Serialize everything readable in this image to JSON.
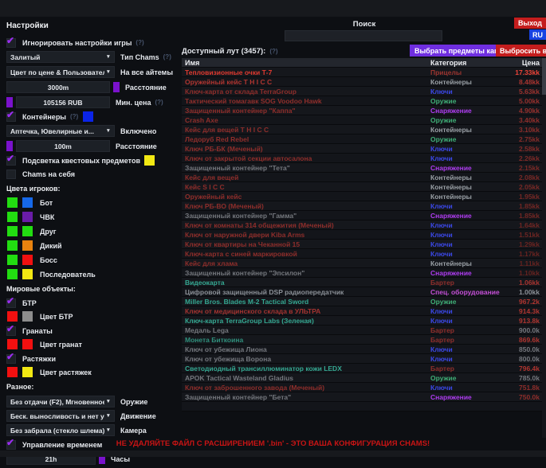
{
  "window": {
    "search_label": "Поиск",
    "exit_button": "Выход",
    "lang_button": "RU",
    "warning": "НЕ УДАЛЯЙТЕ ФАЙЛ С РАСШИРЕНИЕМ '.bin'  - ЭТО ВАША КОНФИГУРАЦИЯ CHAMS!"
  },
  "settings": {
    "title": "Настройки",
    "ignore_game": {
      "label": "Игнорировать настройки игры",
      "hint": "(?)",
      "checked": true
    },
    "chams_type": {
      "value": "Залитый",
      "label": "Тип Chams",
      "hint": "(?)"
    },
    "color_mode": {
      "value": "Цвет по цене & Пользователь",
      "label": "На все айтемы"
    },
    "distance_all": {
      "value": "3000m",
      "label": "Расстояние",
      "swatch": "#7a12cc"
    },
    "min_price": {
      "value": "105156 RUB",
      "label": "Мин. цена",
      "hint": "(?)",
      "swatch": "#7a12cc"
    },
    "containers": {
      "label": "Контейнеры",
      "hint": "(?)",
      "swatch": "#0b24e8",
      "checked": true
    },
    "containers_filter": {
      "value": "Аптечка, Ювелирные и...",
      "label": "Включено"
    },
    "containers_distance": {
      "value": "100m",
      "label": "Расстояние",
      "swatch": "#7a12cc"
    },
    "quest_highlight": {
      "label": "Подсветка квестовых предметов",
      "swatch": "#f2e813",
      "checked": true
    },
    "self_chams": {
      "label": "Chams на себя",
      "checked": false
    },
    "player_colors_title": "Цвета игроков:",
    "player_colors": [
      {
        "label": "Бот",
        "c1": "#22dd11",
        "c2": "#1668e8"
      },
      {
        "label": "ЧВК",
        "c1": "#22dd11",
        "c2": "#6a1ca8"
      },
      {
        "label": "Друг",
        "c1": "#22dd11",
        "c2": "#22dd11"
      },
      {
        "label": "Дикий",
        "c1": "#22dd11",
        "c2": "#e8820f"
      },
      {
        "label": "Босс",
        "c1": "#22dd11",
        "c2": "#f21010"
      },
      {
        "label": "Последователь",
        "c1": "#22dd11",
        "c2": "#f2e813"
      }
    ],
    "world_title": "Мировые объекты:",
    "btr": {
      "label": "БТР",
      "checked": true
    },
    "btr_color": {
      "label": "Цвет БТР",
      "c1": "#f21010",
      "c2": "#8d8d8d"
    },
    "grenades": {
      "label": "Гранаты",
      "checked": true
    },
    "grenade_color": {
      "label": "Цвет гранат",
      "c1": "#f21010",
      "c2": "#f21010"
    },
    "tripwires": {
      "label": "Растяжки",
      "checked": true
    },
    "tripwire_color": {
      "label": "Цвет растяжек",
      "c1": "#f21010",
      "c2": "#f2e813"
    },
    "misc_title": "Разное:",
    "weapon": {
      "value": "Без отдачи (F2), Мгновенное п",
      "label": "Оружие"
    },
    "movement": {
      "value": "Беск. выносливость и нет уста",
      "label": "Движение"
    },
    "camera": {
      "value": "Без забрала (стекло шлема)",
      "label": "Камера"
    },
    "time_control": {
      "label": "Управление временем",
      "checked": true
    },
    "hours": {
      "value": "21h",
      "label": "Часы",
      "swatch": "#7a12cc"
    }
  },
  "loot": {
    "title": "Доступный лут (3457):",
    "hint": "(?)",
    "kappa_button": "Выбрать предметы каппа",
    "discard_button": "Выбросить все",
    "columns": {
      "name": "Имя",
      "category": "Категория",
      "price": "Цена"
    },
    "category_colors": {
      "Прицелы": "#9c3530",
      "Контейнеры": "#9aa0a6",
      "Ключи": "#3b48e8",
      "Оружие": "#3fae76",
      "Снаряжение": "#ae3cf0",
      "Бартер": "#8f2f2c",
      "Спец. оборудование": "#c44fd6"
    },
    "rows": [
      {
        "name": "Тепловизионные очки Т-7",
        "name_color": "#e03a30",
        "cat": "Прицелы",
        "price": "17.33kk",
        "price_color": "#f04438"
      },
      {
        "name": "Оружейный кейс T H I C C",
        "name_color": "#b03530",
        "cat": "Контейнеры",
        "price": "8.48kk",
        "price_color": "#a83430"
      },
      {
        "name": "Ключ-карта от склада TerraGroup",
        "name_color": "#8f2e2b",
        "cat": "Ключи",
        "price": "5.63kk",
        "price_color": "#9c322e"
      },
      {
        "name": "Тактический томагавк SOG Voodoo Hawk",
        "name_color": "#8f2e2b",
        "cat": "Оружие",
        "price": "5.00kk",
        "price_color": "#96302d"
      },
      {
        "name": "Защищенный контейнер \"Каппа\"",
        "name_color": "#8f2e2b",
        "cat": "Снаряжение",
        "price": "4.90kk",
        "price_color": "#96302d"
      },
      {
        "name": "Crash Axe",
        "name_color": "#8f2e2b",
        "cat": "Оружие",
        "price": "3.40kk",
        "price_color": "#8f2e2b"
      },
      {
        "name": "Кейс для вещей T H I C C",
        "name_color": "#8f2e2b",
        "cat": "Контейнеры",
        "price": "3.10kk",
        "price_color": "#8a2d2a"
      },
      {
        "name": "Ледоруб Red Rebel",
        "name_color": "#8f2e2b",
        "cat": "Оружие",
        "price": "2.75kk",
        "price_color": "#852c29"
      },
      {
        "name": "Ключ РБ-БК (Меченый)",
        "name_color": "#8f2e2b",
        "cat": "Ключи",
        "price": "2.58kk",
        "price_color": "#822b28"
      },
      {
        "name": "Ключ от закрытой секции автосалона",
        "name_color": "#8f2e2b",
        "cat": "Ключи",
        "price": "2.26kk",
        "price_color": "#7d2a27"
      },
      {
        "name": "Защищенный контейнер \"Тета\"",
        "name_color": "#74777d",
        "cat": "Снаряжение",
        "price": "2.15kk",
        "price_color": "#7a2926"
      },
      {
        "name": "Кейс для вещей",
        "name_color": "#8f2e2b",
        "cat": "Контейнеры",
        "price": "2.08kk",
        "price_color": "#782926"
      },
      {
        "name": "Кейс S I C C",
        "name_color": "#8f2e2b",
        "cat": "Контейнеры",
        "price": "2.05kk",
        "price_color": "#782926"
      },
      {
        "name": "Оружейный кейс",
        "name_color": "#8f2e2b",
        "cat": "Контейнеры",
        "price": "1.95kk",
        "price_color": "#752825"
      },
      {
        "name": "Ключ РБ-ВО (Меченый)",
        "name_color": "#8f2e2b",
        "cat": "Ключи",
        "price": "1.85kk",
        "price_color": "#732724"
      },
      {
        "name": "Защищенный контейнер \"Гамма\"",
        "name_color": "#74777d",
        "cat": "Снаряжение",
        "price": "1.85kk",
        "price_color": "#732724"
      },
      {
        "name": "Ключ от комнаты 314 общежития (Меченый)",
        "name_color": "#8f2e2b",
        "cat": "Ключи",
        "price": "1.64kk",
        "price_color": "#702623"
      },
      {
        "name": "Ключ от наружной двери Kiba Arms",
        "name_color": "#8f2e2b",
        "cat": "Ключи",
        "price": "1.51kk",
        "price_color": "#6d2522"
      },
      {
        "name": "Ключ от квартиры на Чеканной 15",
        "name_color": "#8f2e2b",
        "cat": "Ключи",
        "price": "1.29kk",
        "price_color": "#6a2421"
      },
      {
        "name": "Ключ-карта с синей маркировкой",
        "name_color": "#8f2e2b",
        "cat": "Ключи",
        "price": "1.17kk",
        "price_color": "#682320"
      },
      {
        "name": "Кейс для хлама",
        "name_color": "#8f2e2b",
        "cat": "Контейнеры",
        "price": "1.11kk",
        "price_color": "#662320"
      },
      {
        "name": "Защищенный контейнер \"Эпсилон\"",
        "name_color": "#74777d",
        "cat": "Снаряжение",
        "price": "1.10kk",
        "price_color": "#662320"
      },
      {
        "name": "Видеокарта",
        "name_color": "#35a892",
        "cat": "Бартер",
        "price": "1.06kk",
        "price_color": "#a83430"
      },
      {
        "name": "Цифровой защищенный DSP радиопередатчик",
        "name_color": "#8b9097",
        "cat": "Спец. оборудование",
        "price": "1.00kk",
        "price_color": "#8b9097"
      },
      {
        "name": "Miller Bros. Blades M-2 Tactical Sword",
        "name_color": "#35a892",
        "cat": "Оружие",
        "price": "967.2k",
        "price_color": "#b03530"
      },
      {
        "name": "Ключ от медицинского склада в УЛЬТРА",
        "name_color": "#a33330",
        "cat": "Ключи",
        "price": "914.3k",
        "price_color": "#b03530"
      },
      {
        "name": "Ключ-карта TerraGroup Labs (Зеленая)",
        "name_color": "#35a892",
        "cat": "Ключи",
        "price": "913.8k",
        "price_color": "#b03530"
      },
      {
        "name": "Медаль Lega",
        "name_color": "#74777d",
        "cat": "Бартер",
        "price": "900.0k",
        "price_color": "#74777d"
      },
      {
        "name": "Монета Биткоина",
        "name_color": "#2f8f7c",
        "cat": "Бартер",
        "price": "869.6k",
        "price_color": "#b03530"
      },
      {
        "name": "Ключ от убежища Лиона",
        "name_color": "#74777d",
        "cat": "Ключи",
        "price": "850.0k",
        "price_color": "#74777d"
      },
      {
        "name": "Ключ от убежища Ворона",
        "name_color": "#74777d",
        "cat": "Ключи",
        "price": "800.0k",
        "price_color": "#74777d"
      },
      {
        "name": "Светодиодный трансиллюминатор кожи LEDX",
        "name_color": "#35a892",
        "cat": "Бартер",
        "price": "796.4k",
        "price_color": "#b03530"
      },
      {
        "name": "APOK Tactical Wasteland Gladius",
        "name_color": "#74777d",
        "cat": "Оружие",
        "price": "785.0k",
        "price_color": "#74777d"
      },
      {
        "name": "Ключ от заброшенного завода (Меченый)",
        "name_color": "#8f2e2b",
        "cat": "Ключи",
        "price": "751.8k",
        "price_color": "#8f2e2b"
      },
      {
        "name": "Защищенный контейнер \"Бета\"",
        "name_color": "#74777d",
        "cat": "Снаряжение",
        "price": "750.0k",
        "price_color": "#8f2e2b"
      },
      {
        "name": "",
        "name_color": "#4a3a5a",
        "cat": "",
        "price": "",
        "price_color": "#555"
      }
    ]
  }
}
